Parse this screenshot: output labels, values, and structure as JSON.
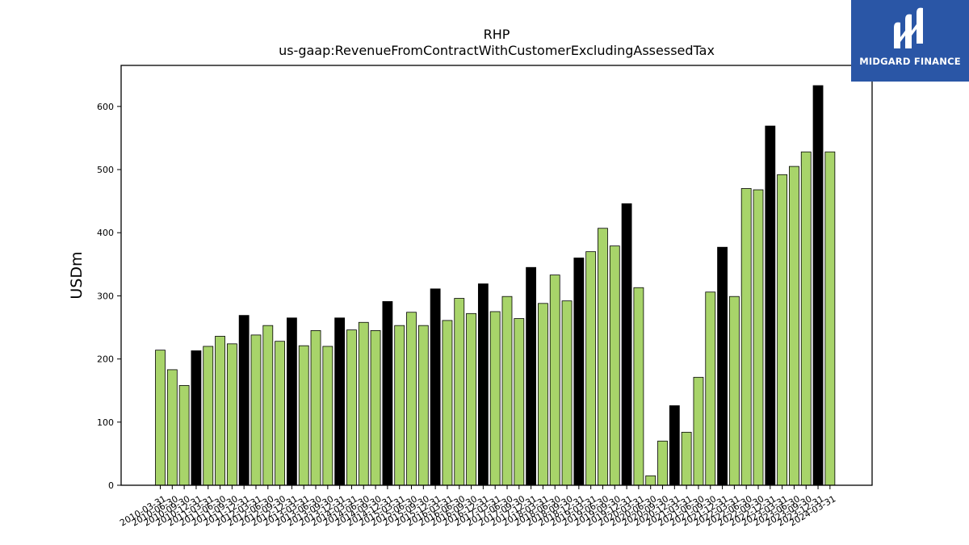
{
  "chart_data": {
    "type": "bar",
    "title": "RHP",
    "subtitle": "us-gaap:RevenueFromContractWithCustomerExcludingAssessedTax",
    "ylabel": "USDm",
    "xlabel": "",
    "ylim": [
      0,
      665
    ],
    "yticks": [
      0,
      100,
      200,
      300,
      400,
      500,
      600
    ],
    "categories": [
      "2010-03-31",
      "2010-06-30",
      "2010-09-30",
      "2010-12-31",
      "2011-03-31",
      "2011-06-30",
      "2011-09-30",
      "2011-12-31",
      "2012-03-31",
      "2012-06-30",
      "2012-09-30",
      "2012-12-31",
      "2013-03-31",
      "2013-06-30",
      "2013-09-30",
      "2013-12-31",
      "2014-03-31",
      "2014-06-30",
      "2014-09-30",
      "2014-12-31",
      "2015-03-31",
      "2015-06-30",
      "2015-09-30",
      "2015-12-31",
      "2016-03-31",
      "2016-06-30",
      "2016-09-30",
      "2016-12-31",
      "2017-03-31",
      "2017-06-30",
      "2017-09-30",
      "2017-12-31",
      "2018-03-31",
      "2018-06-30",
      "2018-09-30",
      "2018-12-31",
      "2019-03-31",
      "2019-06-30",
      "2019-09-30",
      "2019-12-31",
      "2020-03-31",
      "2020-06-30",
      "2020-09-30",
      "2020-12-31",
      "2021-03-31",
      "2021-06-30",
      "2021-09-30",
      "2021-12-31",
      "2022-03-31",
      "2022-06-30",
      "2022-09-30",
      "2022-12-31",
      "2023-03-31",
      "2023-06-30",
      "2023-09-30",
      "2023-12-31",
      "2024-03-31"
    ],
    "values": [
      214,
      183,
      158,
      213,
      220,
      236,
      224,
      269,
      238,
      253,
      228,
      265,
      221,
      245,
      220,
      265,
      246,
      258,
      245,
      291,
      253,
      274,
      253,
      311,
      261,
      296,
      272,
      319,
      275,
      299,
      264,
      345,
      288,
      333,
      292,
      360,
      370,
      407,
      379,
      446,
      313,
      15,
      70,
      126,
      84,
      171,
      306,
      377,
      299,
      470,
      468,
      569,
      492,
      505,
      528,
      633,
      528
    ],
    "colors": {
      "bar": "#a8d46a",
      "highlight": "#000000",
      "edge": "#000000"
    },
    "highlight_rule": "every 4th bar starting with 2010-12-31 (Q4) drawn black",
    "grid": false,
    "legend": "none"
  },
  "logo": {
    "text": "MIDGARD FINANCE",
    "background": "#2a56a6"
  }
}
